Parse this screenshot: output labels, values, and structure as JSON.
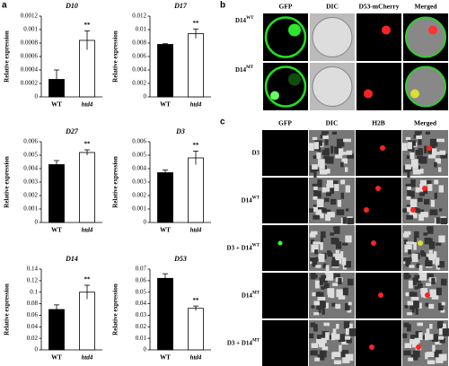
{
  "chart_data": [
    {
      "type": "bar",
      "title": "D10",
      "ylabel": "Relative expression",
      "categories": [
        "WT",
        "htd4"
      ],
      "values": [
        0.00026,
        0.00084
      ],
      "errors": [
        0.00014,
        0.00014
      ],
      "colors": [
        "#000000",
        "#ffffff"
      ],
      "annotation": "**",
      "ylim": [
        0,
        0.0012
      ],
      "yticks": [
        0,
        0.0002,
        0.0004,
        0.0006,
        0.0008,
        0.001,
        0.0012
      ]
    },
    {
      "type": "bar",
      "title": "D17",
      "ylabel": "Relative expression",
      "categories": [
        "WT",
        "htd4"
      ],
      "values": [
        0.0078,
        0.0094
      ],
      "errors": [
        0.0001,
        0.0007
      ],
      "colors": [
        "#000000",
        "#ffffff"
      ],
      "annotation": "**",
      "ylim": [
        0,
        0.012
      ],
      "yticks": [
        0,
        0.002,
        0.004,
        0.006,
        0.008,
        0.01,
        0.012
      ]
    },
    {
      "type": "bar",
      "title": "D27",
      "ylabel": "Relative expression",
      "categories": [
        "WT",
        "htd4"
      ],
      "values": [
        0.0043,
        0.0052
      ],
      "errors": [
        0.0003,
        0.0002
      ],
      "colors": [
        "#000000",
        "#ffffff"
      ],
      "annotation": "**",
      "ylim": [
        0,
        0.006
      ],
      "yticks": [
        0,
        0.001,
        0.002,
        0.003,
        0.004,
        0.005,
        0.006
      ]
    },
    {
      "type": "bar",
      "title": "D3",
      "ylabel": "Relative expression",
      "categories": [
        "WT",
        "htd4"
      ],
      "values": [
        0.0037,
        0.0048
      ],
      "errors": [
        0.0002,
        0.0005
      ],
      "colors": [
        "#000000",
        "#ffffff"
      ],
      "annotation": "**",
      "ylim": [
        0,
        0.006
      ],
      "yticks": [
        0,
        0.001,
        0.002,
        0.003,
        0.004,
        0.005,
        0.006
      ]
    },
    {
      "type": "bar",
      "title": "D14",
      "ylabel": "Relative expression",
      "categories": [
        "WT",
        "htd4"
      ],
      "values": [
        0.07,
        0.1
      ],
      "errors": [
        0.008,
        0.012
      ],
      "colors": [
        "#000000",
        "#ffffff"
      ],
      "annotation": "**",
      "ylim": [
        0,
        0.14
      ],
      "yticks": [
        0,
        0.02,
        0.04,
        0.06,
        0.08,
        0.1,
        0.12,
        0.14
      ]
    },
    {
      "type": "bar",
      "title": "D53",
      "ylabel": "Relative expression",
      "categories": [
        "WT",
        "htd4"
      ],
      "values": [
        0.062,
        0.036
      ],
      "errors": [
        0.004,
        0.002
      ],
      "colors": [
        "#000000",
        "#ffffff"
      ],
      "annotation": "**",
      "ylim": [
        0,
        0.07
      ],
      "yticks": [
        0,
        0.01,
        0.02,
        0.03,
        0.04,
        0.05,
        0.06,
        0.07
      ]
    }
  ],
  "panels": {
    "a": {
      "label": "a"
    },
    "b": {
      "label": "b",
      "columns": [
        "GFP",
        "DIC",
        "D53-mCherry",
        "Merged"
      ],
      "rows": [
        {
          "name": "D14",
          "sup": "WT"
        },
        {
          "name": "D14",
          "sup": "MT"
        }
      ]
    },
    "c": {
      "label": "c",
      "columns": [
        "GFP",
        "DIC",
        "H2B",
        "Merged"
      ],
      "rows": [
        {
          "name": "D3"
        },
        {
          "name": "D14",
          "sup": "WT"
        },
        {
          "name": "D3 + D14",
          "sup": "WT"
        },
        {
          "name": "D14",
          "sup": "MT"
        },
        {
          "name": "D3 + D14",
          "sup": "MT"
        }
      ]
    }
  }
}
